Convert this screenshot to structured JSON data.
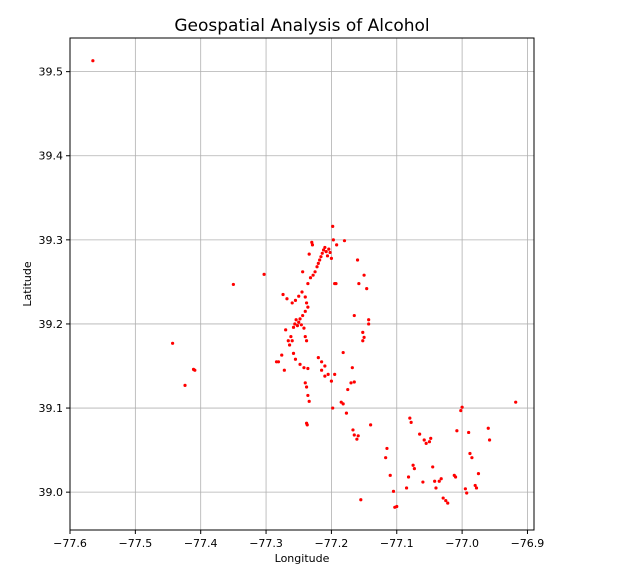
{
  "chart_data": {
    "type": "scatter",
    "title": "Geospatial Analysis of Alcohol",
    "xlabel": "Longitude",
    "ylabel": "Latitude",
    "xlim": [
      -77.6,
      -76.89
    ],
    "ylim": [
      38.955,
      39.54
    ],
    "xticks": [
      -77.6,
      -77.5,
      -77.4,
      -77.3,
      -77.2,
      -77.1,
      -77.0,
      -76.9
    ],
    "xtick_labels": [
      "−77.6",
      "−77.5",
      "−77.4",
      "−77.3",
      "−77.2",
      "−77.1",
      "−77.0",
      "−76.9"
    ],
    "yticks": [
      39.0,
      39.1,
      39.2,
      39.3,
      39.4,
      39.5
    ],
    "ytick_labels": [
      "39.0",
      "39.1",
      "39.2",
      "39.3",
      "39.4",
      "39.5"
    ],
    "grid": true,
    "marker_color": "#ff0000",
    "points": [
      [
        -77.565,
        39.513
      ],
      [
        -77.443,
        39.177
      ],
      [
        -77.411,
        39.146
      ],
      [
        -77.409,
        39.145
      ],
      [
        -77.424,
        39.127
      ],
      [
        -77.35,
        39.247
      ],
      [
        -77.303,
        39.259
      ],
      [
        -77.284,
        39.155
      ],
      [
        -77.281,
        39.155
      ],
      [
        -77.276,
        39.163
      ],
      [
        -77.274,
        39.235
      ],
      [
        -77.272,
        39.145
      ],
      [
        -77.27,
        39.193
      ],
      [
        -77.268,
        39.23
      ],
      [
        -77.266,
        39.18
      ],
      [
        -77.264,
        39.175
      ],
      [
        -77.262,
        39.185
      ],
      [
        -77.26,
        39.18
      ],
      [
        -77.258,
        39.196
      ],
      [
        -77.256,
        39.2
      ],
      [
        -77.254,
        39.205
      ],
      [
        -77.252,
        39.198
      ],
      [
        -77.25,
        39.202
      ],
      [
        -77.248,
        39.206
      ],
      [
        -77.246,
        39.199
      ],
      [
        -77.244,
        39.21
      ],
      [
        -77.242,
        39.195
      ],
      [
        -77.24,
        39.185
      ],
      [
        -77.238,
        39.18
      ],
      [
        -77.26,
        39.225
      ],
      [
        -77.255,
        39.228
      ],
      [
        -77.25,
        39.233
      ],
      [
        -77.245,
        39.238
      ],
      [
        -77.24,
        39.232
      ],
      [
        -77.238,
        39.225
      ],
      [
        -77.236,
        39.22
      ],
      [
        -77.24,
        39.215
      ],
      [
        -77.244,
        39.262
      ],
      [
        -77.258,
        39.165
      ],
      [
        -77.255,
        39.158
      ],
      [
        -77.248,
        39.152
      ],
      [
        -77.242,
        39.148
      ],
      [
        -77.236,
        39.147
      ],
      [
        -77.24,
        39.13
      ],
      [
        -77.238,
        39.125
      ],
      [
        -77.236,
        39.115
      ],
      [
        -77.234,
        39.108
      ],
      [
        -77.238,
        39.082
      ],
      [
        -77.237,
        39.08
      ],
      [
        -77.236,
        39.248
      ],
      [
        -77.232,
        39.255
      ],
      [
        -77.228,
        39.258
      ],
      [
        -77.225,
        39.262
      ],
      [
        -77.222,
        39.268
      ],
      [
        -77.22,
        39.272
      ],
      [
        -77.218,
        39.276
      ],
      [
        -77.216,
        39.28
      ],
      [
        -77.214,
        39.284
      ],
      [
        -77.212,
        39.288
      ],
      [
        -77.21,
        39.291
      ],
      [
        -77.208,
        39.286
      ],
      [
        -77.206,
        39.281
      ],
      [
        -77.204,
        39.289
      ],
      [
        -77.202,
        39.285
      ],
      [
        -77.2,
        39.278
      ],
      [
        -77.198,
        39.316
      ],
      [
        -77.197,
        39.3
      ],
      [
        -77.23,
        39.297
      ],
      [
        -77.229,
        39.294
      ],
      [
        -77.234,
        39.283
      ],
      [
        -77.18,
        39.299
      ],
      [
        -77.16,
        39.276
      ],
      [
        -77.158,
        39.248
      ],
      [
        -77.15,
        39.258
      ],
      [
        -77.146,
        39.242
      ],
      [
        -77.192,
        39.294
      ],
      [
        -77.195,
        39.248
      ],
      [
        -77.193,
        39.248
      ],
      [
        -77.165,
        39.21
      ],
      [
        -77.143,
        39.205
      ],
      [
        -77.143,
        39.2
      ],
      [
        -77.152,
        39.19
      ],
      [
        -77.15,
        39.184
      ],
      [
        -77.152,
        39.18
      ],
      [
        -77.182,
        39.166
      ],
      [
        -77.22,
        39.16
      ],
      [
        -77.215,
        39.155
      ],
      [
        -77.21,
        39.15
      ],
      [
        -77.215,
        39.145
      ],
      [
        -77.205,
        39.14
      ],
      [
        -77.21,
        39.138
      ],
      [
        -77.2,
        39.132
      ],
      [
        -77.195,
        39.14
      ],
      [
        -77.17,
        39.13
      ],
      [
        -77.165,
        39.131
      ],
      [
        -77.175,
        39.122
      ],
      [
        -77.168,
        39.148
      ],
      [
        -77.185,
        39.107
      ],
      [
        -77.182,
        39.105
      ],
      [
        -77.177,
        39.094
      ],
      [
        -77.198,
        39.1
      ],
      [
        -77.167,
        39.074
      ],
      [
        -77.165,
        39.068
      ],
      [
        -77.161,
        39.063
      ],
      [
        -77.159,
        39.067
      ],
      [
        -77.14,
        39.08
      ],
      [
        -77.115,
        39.052
      ],
      [
        -77.117,
        39.041
      ],
      [
        -77.11,
        39.02
      ],
      [
        -77.105,
        39.001
      ],
      [
        -77.1,
        38.983
      ],
      [
        -77.103,
        38.982
      ],
      [
        -77.155,
        38.991
      ],
      [
        -77.08,
        39.088
      ],
      [
        -77.078,
        39.083
      ],
      [
        -77.075,
        39.032
      ],
      [
        -77.073,
        39.028
      ],
      [
        -77.065,
        39.069
      ],
      [
        -77.058,
        39.062
      ],
      [
        -77.055,
        39.058
      ],
      [
        -77.05,
        39.06
      ],
      [
        -77.048,
        39.064
      ],
      [
        -77.045,
        39.03
      ],
      [
        -77.042,
        39.013
      ],
      [
        -77.04,
        39.005
      ],
      [
        -77.035,
        39.013
      ],
      [
        -77.032,
        39.016
      ],
      [
        -77.029,
        38.993
      ],
      [
        -77.025,
        38.99
      ],
      [
        -77.022,
        38.987
      ],
      [
        -77.012,
        39.02
      ],
      [
        -77.01,
        39.018
      ],
      [
        -77.008,
        39.073
      ],
      [
        -77.0,
        39.101
      ],
      [
        -77.002,
        39.097
      ],
      [
        -76.995,
        39.004
      ],
      [
        -76.993,
        38.999
      ],
      [
        -76.99,
        39.071
      ],
      [
        -76.988,
        39.046
      ],
      [
        -76.985,
        39.041
      ],
      [
        -76.98,
        39.008
      ],
      [
        -76.978,
        39.005
      ],
      [
        -76.975,
        39.022
      ],
      [
        -76.96,
        39.076
      ],
      [
        -76.958,
        39.062
      ],
      [
        -76.918,
        39.107
      ],
      [
        -77.082,
        39.018
      ],
      [
        -77.085,
        39.005
      ],
      [
        -77.06,
        39.012
      ]
    ]
  }
}
